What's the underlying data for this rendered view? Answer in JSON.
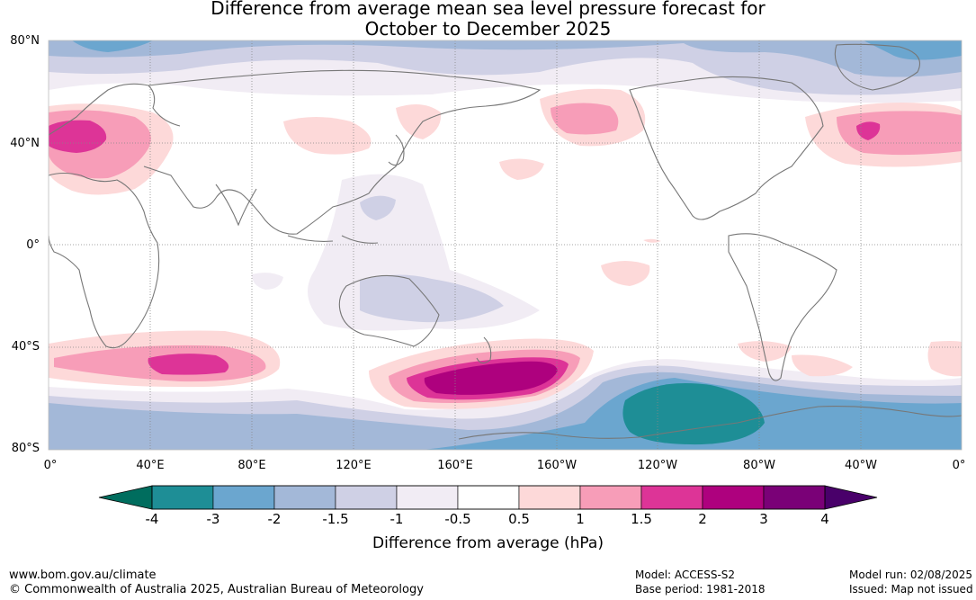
{
  "title": {
    "line1": "Difference from average mean sea level pressure forecast for",
    "line2": "October to December 2025"
  },
  "map": {
    "lat_labels": [
      "80°N",
      "40°N",
      "0°",
      "40°S",
      "80°S"
    ],
    "lon_labels": [
      "0°",
      "40°E",
      "80°E",
      "120°E",
      "160°E",
      "160°W",
      "120°W",
      "80°W",
      "40°W",
      "0°"
    ]
  },
  "colorbar": {
    "ticks": [
      "-4",
      "-3",
      "-2",
      "-1.5",
      "-1",
      "-0.5",
      "0.5",
      "1",
      "1.5",
      "2",
      "3",
      "4"
    ],
    "colors": [
      "#1e8e96",
      "#6ba6cf",
      "#a3b8d8",
      "#cfd0e5",
      "#f1ecf4",
      "#ffffff",
      "#fdd9d9",
      "#f79db8",
      "#dd3497",
      "#ae017e",
      "#7a0177"
    ],
    "under_color": "#006d5e",
    "over_color": "#49006a",
    "label": "Difference from average (hPa)"
  },
  "footer": {
    "url": "www.bom.gov.au/climate",
    "copyright": "© Commonwealth of Australia 2025, Australian Bureau of Meteorology",
    "model": "Model: ACCESS-S2",
    "base_period": "Base period: 1981-2018",
    "model_run": "Model run: 02/08/2025",
    "issued": "Issued: Map not issued"
  }
}
